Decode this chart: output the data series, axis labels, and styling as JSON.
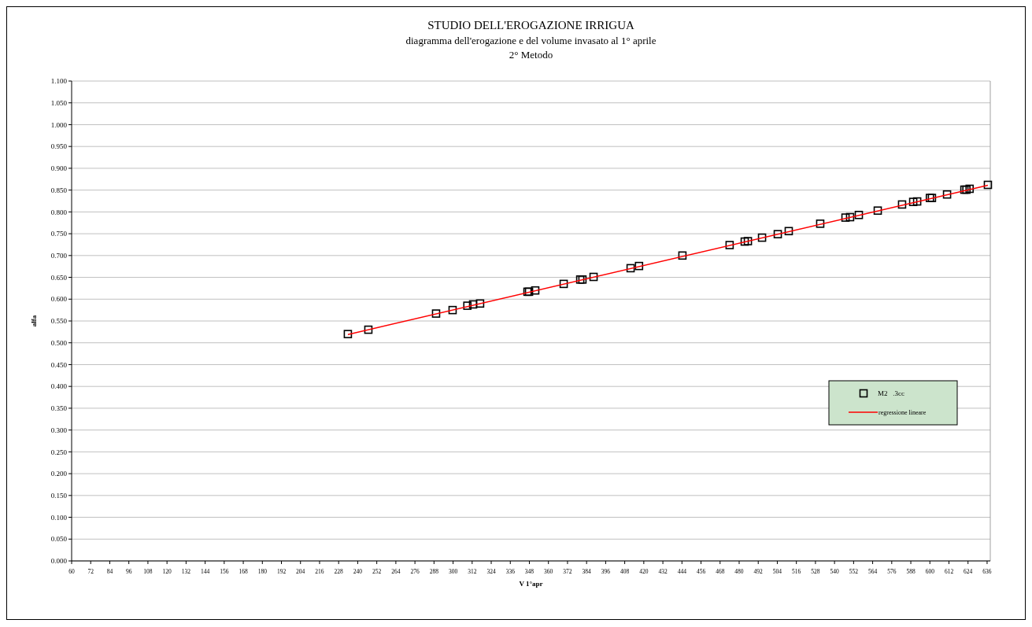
{
  "chart_data": {
    "type": "scatter",
    "title": "STUDIO DELL'EROGAZIONE IRRIGUA",
    "subtitle": "diagramma dell'erogazione e del volume invasato al 1° aprile\n2° Metodo",
    "xlabel": "V 1°apr",
    "ylabel": "alfa",
    "xlim": [
      60,
      638
    ],
    "xticks": [
      60,
      72,
      84,
      96,
      108,
      120,
      132,
      144,
      156,
      168,
      180,
      192,
      204,
      216,
      228,
      240,
      252,
      264,
      276,
      288,
      300,
      312,
      324,
      336,
      348,
      360,
      372,
      384,
      396,
      408,
      420,
      432,
      444,
      456,
      468,
      480,
      492,
      504,
      516,
      528,
      540,
      552,
      564,
      576,
      588,
      600,
      612,
      624,
      636
    ],
    "ylim": [
      0,
      1.1
    ],
    "yticks": [
      {
        "value": 0,
        "label": "0.000"
      },
      {
        "value": 0.05,
        "label": "0.050"
      },
      {
        "value": 0.1,
        "label": "0.100"
      },
      {
        "value": 0.15,
        "label": "0.150"
      },
      {
        "value": 0.2,
        "label": "0.200"
      },
      {
        "value": 0.25,
        "label": "0.250"
      },
      {
        "value": 0.3,
        "label": "0.300"
      },
      {
        "value": 0.35,
        "label": "0.350"
      },
      {
        "value": 0.4,
        "label": "0.400"
      },
      {
        "value": 0.45,
        "label": "0.450"
      },
      {
        "value": 0.5,
        "label": "0.500"
      },
      {
        "value": 0.55,
        "label": "0.550"
      },
      {
        "value": 0.6,
        "label": "0.600"
      },
      {
        "value": 0.65,
        "label": "0.650"
      },
      {
        "value": 0.7,
        "label": "0.700"
      },
      {
        "value": 0.75,
        "label": "0.750"
      },
      {
        "value": 0.8,
        "label": "0.800"
      },
      {
        "value": 0.85,
        "label": "0.850"
      },
      {
        "value": 0.9,
        "label": "0.900"
      },
      {
        "value": 0.95,
        "label": "0.950"
      },
      {
        "value": 1.0,
        "label": "1.000"
      },
      {
        "value": 1.05,
        "label": "1.050"
      },
      {
        "value": 1.1,
        "label": "1.100"
      }
    ],
    "grid": "y",
    "legend": "right",
    "series": [
      {
        "name": "M2   .3cc",
        "marker": "square",
        "color": "#000000",
        "x": [
          233.8,
          246.7,
          289.3,
          299.7,
          309,
          312.6,
          317,
          346.8,
          347.8,
          351.7,
          369.6,
          380,
          381.4,
          388.4,
          411.7,
          417,
          444.3,
          474,
          483.5,
          485.5,
          494.4,
          504.3,
          511.2,
          531,
          546.9,
          549.8,
          555.3,
          567.2,
          582.5,
          589.5,
          592,
          600,
          601.3,
          610.8,
          621.7,
          623,
          625,
          636.5
        ],
        "values": [
          0.52,
          0.53,
          0.567,
          0.575,
          0.585,
          0.588,
          0.59,
          0.617,
          0.617,
          0.62,
          0.635,
          0.645,
          0.645,
          0.651,
          0.671,
          0.676,
          0.7,
          0.724,
          0.732,
          0.733,
          0.741,
          0.749,
          0.756,
          0.773,
          0.787,
          0.788,
          0.793,
          0.803,
          0.817,
          0.823,
          0.824,
          0.832,
          0.832,
          0.84,
          0.851,
          0.851,
          0.853,
          0.862
        ]
      },
      {
        "name": "regressione lineare",
        "type": "line",
        "marker": "none",
        "color": "#ff0000",
        "line_style": "solid",
        "x": [
          233.8,
          636.5
        ],
        "values": [
          0.519,
          0.861
        ]
      }
    ]
  }
}
